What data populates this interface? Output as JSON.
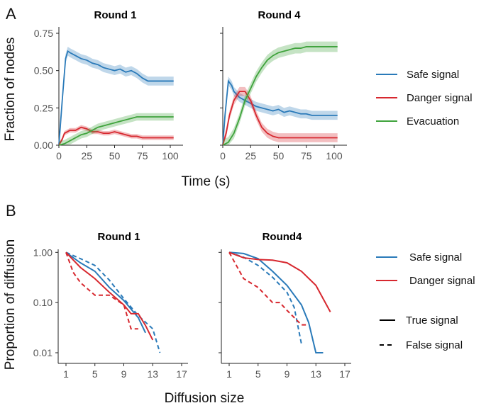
{
  "colors": {
    "safe": "#2A7AB9",
    "danger": "#D7282F",
    "evac": "#3FA33C",
    "black": "#000000"
  },
  "chart_data": [
    {
      "panel": "A",
      "type": "line",
      "xlabel": "Time (s)",
      "ylabel": "Fraction of nodes",
      "xlim": [
        0,
        105
      ],
      "ylim": [
        0,
        0.8
      ],
      "xticks": [
        "0",
        "25",
        "50",
        "75",
        "100"
      ],
      "yticks": [
        "0.00",
        "0.25",
        "0.50",
        "0.75"
      ],
      "legend": [
        "Safe signal",
        "Danger signal",
        "Evacuation"
      ],
      "facets": [
        {
          "title": "Round 1",
          "series": [
            {
              "name": "Safe signal",
              "x": [
                0,
                3,
                6,
                8,
                10,
                15,
                20,
                25,
                30,
                35,
                40,
                45,
                50,
                55,
                60,
                65,
                70,
                75,
                80,
                90,
                103
              ],
              "y": [
                0,
                0.3,
                0.58,
                0.63,
                0.62,
                0.6,
                0.58,
                0.57,
                0.55,
                0.54,
                0.52,
                0.51,
                0.5,
                0.51,
                0.49,
                0.5,
                0.48,
                0.45,
                0.43,
                0.43,
                0.43
              ],
              "band": 0.03
            },
            {
              "name": "Danger signal",
              "x": [
                0,
                3,
                5,
                10,
                15,
                20,
                25,
                30,
                35,
                40,
                45,
                50,
                55,
                60,
                65,
                70,
                75,
                80,
                90,
                103
              ],
              "y": [
                0,
                0.04,
                0.08,
                0.1,
                0.1,
                0.12,
                0.11,
                0.09,
                0.09,
                0.08,
                0.08,
                0.09,
                0.08,
                0.07,
                0.06,
                0.06,
                0.05,
                0.05,
                0.05,
                0.05
              ],
              "band": 0.015
            },
            {
              "name": "Evacuation",
              "x": [
                0,
                5,
                10,
                15,
                20,
                25,
                30,
                35,
                40,
                45,
                50,
                55,
                60,
                65,
                70,
                75,
                80,
                90,
                103
              ],
              "y": [
                0,
                0.01,
                0.03,
                0.05,
                0.07,
                0.08,
                0.1,
                0.12,
                0.13,
                0.14,
                0.15,
                0.16,
                0.17,
                0.18,
                0.19,
                0.19,
                0.19,
                0.19,
                0.19
              ],
              "band": 0.025
            }
          ]
        },
        {
          "title": "Round 4",
          "series": [
            {
              "name": "Safe signal",
              "x": [
                0,
                2,
                5,
                8,
                10,
                15,
                20,
                25,
                30,
                35,
                40,
                45,
                50,
                55,
                60,
                65,
                70,
                75,
                80,
                90,
                103
              ],
              "y": [
                0,
                0.2,
                0.43,
                0.4,
                0.36,
                0.32,
                0.3,
                0.28,
                0.26,
                0.25,
                0.24,
                0.23,
                0.24,
                0.22,
                0.23,
                0.22,
                0.21,
                0.21,
                0.2,
                0.2,
                0.2
              ],
              "band": 0.03
            },
            {
              "name": "Danger signal",
              "x": [
                0,
                3,
                6,
                10,
                15,
                20,
                25,
                30,
                35,
                40,
                45,
                50,
                55,
                60,
                70,
                80,
                90,
                103
              ],
              "y": [
                0,
                0.08,
                0.2,
                0.3,
                0.36,
                0.36,
                0.3,
                0.2,
                0.12,
                0.08,
                0.06,
                0.05,
                0.05,
                0.05,
                0.05,
                0.05,
                0.05,
                0.05
              ],
              "band": 0.03
            },
            {
              "name": "Evacuation",
              "x": [
                0,
                5,
                10,
                15,
                20,
                25,
                30,
                35,
                40,
                45,
                50,
                55,
                60,
                65,
                70,
                75,
                80,
                90,
                103
              ],
              "y": [
                0,
                0.02,
                0.08,
                0.18,
                0.3,
                0.38,
                0.46,
                0.52,
                0.57,
                0.6,
                0.62,
                0.63,
                0.64,
                0.65,
                0.65,
                0.66,
                0.66,
                0.66,
                0.66
              ],
              "band": 0.035
            }
          ]
        }
      ]
    },
    {
      "panel": "B",
      "type": "line",
      "yscale": "log",
      "xlabel": "Diffusion size",
      "ylabel": "Proportion of diffusion",
      "xlim": [
        0,
        17
      ],
      "ylim": [
        0.008,
        1.2
      ],
      "xticks": [
        "1",
        "5",
        "9",
        "13",
        "17"
      ],
      "yticks": [
        "1.00",
        "0.10",
        "0.01"
      ],
      "legend_color": [
        "Safe signal",
        "Danger signal"
      ],
      "legend_linetype": [
        "True signal",
        "False signal"
      ],
      "facets": [
        {
          "title": "Round 1",
          "series": [
            {
              "name": "Safe signal",
              "linetype": "True signal",
              "x": [
                1,
                3,
                5,
                7,
                9,
                11,
                12
              ],
              "y": [
                1.0,
                0.62,
                0.42,
                0.2,
                0.11,
                0.05,
                0.025
              ]
            },
            {
              "name": "Safe signal",
              "linetype": "False signal",
              "x": [
                1,
                3,
                5,
                7,
                9,
                11,
                13,
                14
              ],
              "y": [
                1.0,
                0.75,
                0.55,
                0.28,
                0.12,
                0.055,
                0.03,
                0.01
              ]
            },
            {
              "name": "Danger signal",
              "linetype": "True signal",
              "x": [
                1,
                3,
                5,
                7,
                9,
                10,
                11,
                12,
                13
              ],
              "y": [
                1.0,
                0.5,
                0.3,
                0.16,
                0.09,
                0.06,
                0.06,
                0.035,
                0.018
              ]
            },
            {
              "name": "Danger signal",
              "linetype": "False signal",
              "x": [
                1,
                2,
                3,
                5,
                7,
                9,
                10,
                11
              ],
              "y": [
                1.0,
                0.4,
                0.25,
                0.14,
                0.14,
                0.09,
                0.03,
                0.03
              ]
            }
          ]
        },
        {
          "title": "Round4",
          "series": [
            {
              "name": "Safe signal",
              "linetype": "True signal",
              "x": [
                1,
                3,
                5,
                7,
                9,
                11,
                12,
                13,
                14
              ],
              "y": [
                1.0,
                0.95,
                0.75,
                0.42,
                0.22,
                0.09,
                0.04,
                0.01,
                0.01
              ]
            },
            {
              "name": "Safe signal",
              "linetype": "False signal",
              "x": [
                1,
                3,
                5,
                7,
                9,
                10,
                11
              ],
              "y": [
                1.0,
                0.8,
                0.55,
                0.32,
                0.16,
                0.08,
                0.015
              ]
            },
            {
              "name": "Danger signal",
              "linetype": "True signal",
              "x": [
                1,
                3,
                5,
                7,
                9,
                11,
                13,
                15
              ],
              "y": [
                1.0,
                0.78,
                0.72,
                0.7,
                0.62,
                0.42,
                0.22,
                0.065
              ]
            },
            {
              "name": "Danger signal",
              "linetype": "False signal",
              "x": [
                1,
                3,
                5,
                7,
                8,
                9,
                11,
                12
              ],
              "y": [
                1.0,
                0.3,
                0.2,
                0.1,
                0.1,
                0.07,
                0.036,
                0.036
              ]
            }
          ]
        }
      ]
    }
  ]
}
